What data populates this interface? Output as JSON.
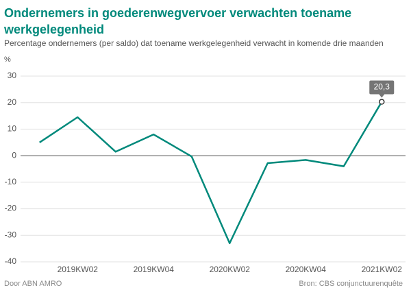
{
  "chart_data": {
    "type": "line",
    "title": "Ondernemers in goederenwegvervoer verwachten toename werkgelegenheid",
    "subtitle": "Percentage ondernemers (per saldo) dat toename werkgelegenheid verwacht in komende drie maanden",
    "y_label": "%",
    "categories": [
      null,
      "2019KW02",
      null,
      "2019KW04",
      null,
      "2020KW02",
      null,
      "2020KW04",
      null,
      "2021KW02"
    ],
    "series": [
      {
        "name": "Ondernemers",
        "color": "#00897b",
        "values": [
          5,
          14.5,
          1.5,
          8,
          -0.3,
          -33,
          -2.8,
          -1.6,
          -4,
          20.3
        ],
        "value_labels": [
          null,
          null,
          null,
          null,
          null,
          null,
          null,
          null,
          null,
          "20,3"
        ]
      }
    ],
    "ylim": [
      -40,
      30
    ],
    "yticks": [
      -40,
      -30,
      -20,
      -10,
      0,
      10,
      20,
      30
    ],
    "grid": true,
    "footer_left": "Door ABN AMRO",
    "footer_right": "Bron: CBS conjunctuurenquête"
  }
}
